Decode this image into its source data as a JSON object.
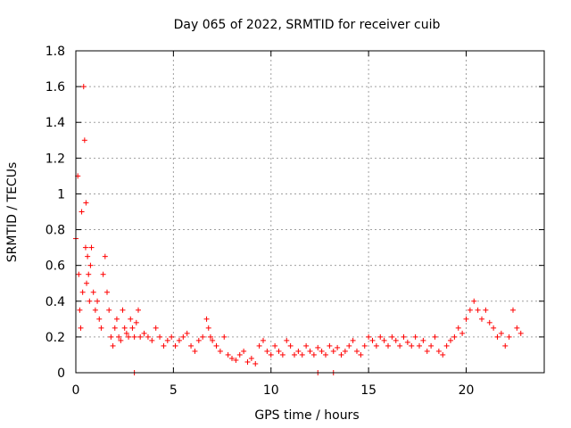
{
  "chart_data": {
    "type": "scatter",
    "title": "Day 065 of 2022, SRMTID for receiver cuib",
    "xlabel": "GPS time / hours",
    "ylabel": "SRMTID / TECUs",
    "xlim": [
      0,
      24
    ],
    "ylim": [
      0,
      1.8
    ],
    "xticks": [
      0,
      5,
      10,
      15,
      20
    ],
    "xtick_labels": [
      "0",
      "5",
      "10",
      "15",
      "20"
    ],
    "yticks": [
      0,
      0.2,
      0.4,
      0.6,
      0.8,
      1.0,
      1.2,
      1.4,
      1.6,
      1.8
    ],
    "ytick_labels": [
      "0",
      "0.2",
      "0.4",
      "0.6",
      "0.8",
      "1",
      "1.2",
      "1.4",
      "1.6",
      "1.8"
    ],
    "grid": true,
    "marker": "+",
    "marker_color": "#ff0000",
    "series": [
      {
        "name": "SRMTID",
        "x": [
          0.0,
          0.1,
          0.15,
          0.2,
          0.25,
          0.3,
          0.35,
          0.4,
          0.45,
          0.5,
          0.52,
          0.55,
          0.6,
          0.65,
          0.7,
          0.75,
          0.8,
          0.9,
          1.0,
          1.1,
          1.2,
          1.3,
          1.4,
          1.5,
          1.6,
          1.7,
          1.8,
          1.9,
          2.0,
          2.1,
          2.2,
          2.3,
          2.4,
          2.5,
          2.6,
          2.7,
          2.8,
          2.9,
          3.0,
          3.1,
          3.2,
          3.3,
          3.5,
          3.7,
          3.9,
          4.1,
          4.3,
          4.5,
          4.7,
          4.9,
          5.1,
          5.3,
          5.5,
          5.7,
          5.9,
          6.1,
          6.3,
          6.5,
          6.7,
          6.8,
          6.9,
          7.0,
          7.2,
          7.4,
          7.6,
          7.8,
          8.0,
          8.2,
          8.4,
          8.6,
          8.8,
          9.0,
          9.2,
          9.4,
          9.6,
          9.8,
          10.0,
          10.2,
          10.4,
          10.6,
          10.8,
          11.0,
          11.2,
          11.4,
          11.6,
          11.8,
          12.0,
          12.2,
          12.4,
          12.6,
          12.8,
          13.0,
          13.2,
          13.4,
          13.6,
          13.8,
          14.0,
          14.2,
          14.4,
          14.6,
          14.8,
          15.0,
          15.2,
          15.4,
          15.6,
          15.8,
          16.0,
          16.2,
          16.4,
          16.6,
          16.8,
          17.0,
          17.2,
          17.4,
          17.6,
          17.8,
          18.0,
          18.2,
          18.4,
          18.6,
          18.8,
          19.0,
          19.2,
          19.4,
          19.6,
          19.8,
          20.0,
          20.2,
          20.4,
          20.6,
          20.8,
          21.0,
          21.2,
          21.4,
          21.6,
          21.8,
          22.0,
          22.2,
          22.4,
          22.6,
          22.8,
          3.0,
          12.4,
          13.2
        ],
        "y": [
          0.75,
          1.1,
          0.55,
          0.35,
          0.25,
          0.9,
          0.45,
          1.6,
          1.3,
          0.7,
          0.95,
          0.5,
          0.65,
          0.55,
          0.4,
          0.6,
          0.7,
          0.45,
          0.35,
          0.4,
          0.3,
          0.25,
          0.55,
          0.65,
          0.45,
          0.35,
          0.2,
          0.15,
          0.25,
          0.3,
          0.2,
          0.18,
          0.35,
          0.25,
          0.22,
          0.2,
          0.3,
          0.25,
          0.2,
          0.28,
          0.35,
          0.2,
          0.22,
          0.2,
          0.18,
          0.25,
          0.2,
          0.15,
          0.18,
          0.2,
          0.15,
          0.18,
          0.2,
          0.22,
          0.15,
          0.12,
          0.18,
          0.2,
          0.3,
          0.25,
          0.2,
          0.18,
          0.15,
          0.12,
          0.2,
          0.1,
          0.08,
          0.07,
          0.1,
          0.12,
          0.06,
          0.08,
          0.05,
          0.15,
          0.18,
          0.12,
          0.1,
          0.15,
          0.12,
          0.1,
          0.18,
          0.15,
          0.1,
          0.12,
          0.1,
          0.15,
          0.12,
          0.1,
          0.14,
          0.12,
          0.1,
          0.15,
          0.12,
          0.14,
          0.1,
          0.12,
          0.15,
          0.18,
          0.12,
          0.1,
          0.15,
          0.2,
          0.18,
          0.15,
          0.2,
          0.18,
          0.15,
          0.2,
          0.18,
          0.15,
          0.2,
          0.17,
          0.15,
          0.2,
          0.15,
          0.18,
          0.12,
          0.15,
          0.2,
          0.12,
          0.1,
          0.15,
          0.18,
          0.2,
          0.25,
          0.22,
          0.3,
          0.35,
          0.4,
          0.35,
          0.3,
          0.35,
          0.28,
          0.25,
          0.2,
          0.22,
          0.15,
          0.2,
          0.35,
          0.25,
          0.22,
          0.0,
          0.0,
          0.0
        ]
      }
    ]
  }
}
